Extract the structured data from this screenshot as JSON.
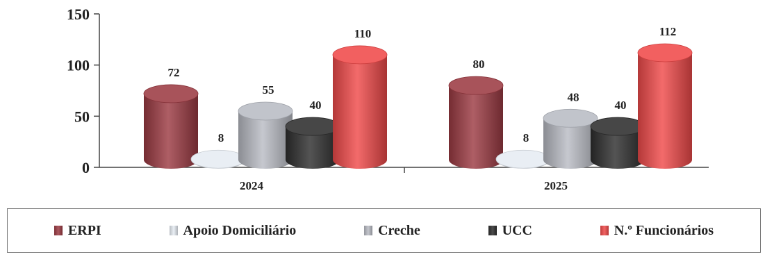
{
  "chart_data": {
    "type": "bar",
    "style": "3d-cylinder",
    "categories": [
      "2024",
      "2025"
    ],
    "series": [
      {
        "name": "ERPI",
        "values": [
          72,
          80
        ],
        "color": "#9c3b43"
      },
      {
        "name": "Apoio Domiciliário",
        "values": [
          8,
          8
        ],
        "color": "#e6ecf3"
      },
      {
        "name": "Creche",
        "values": [
          55,
          48
        ],
        "color": "#b9bcc4"
      },
      {
        "name": "UCC",
        "values": [
          40,
          40
        ],
        "color": "#2e2e2e"
      },
      {
        "name": "N.º Funcionários",
        "values": [
          110,
          112
        ],
        "color": "#f04a4a"
      }
    ],
    "ylim": [
      0,
      150
    ],
    "yticks": [
      "0",
      "50",
      "100",
      "150"
    ],
    "title": "",
    "xlabel": "",
    "ylabel": "",
    "grid": false,
    "legend_position": "bottom"
  }
}
